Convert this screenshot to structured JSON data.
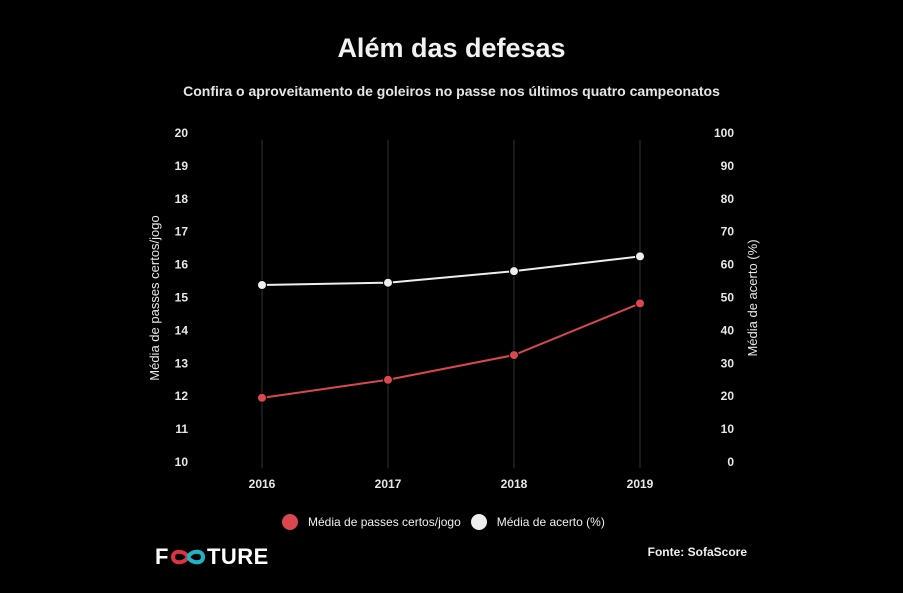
{
  "title": "Além das defesas",
  "subtitle": "Confira o aproveitamento de goleiros no passe nos últimos quatro campeonatos",
  "source": "Fonte: SofaScore",
  "logo": {
    "left": "F",
    "right": "TURE"
  },
  "colors": {
    "background": "#000000",
    "passes": "#d9484f",
    "accuracy": "#eeeeee",
    "grid": "#333333"
  },
  "chart_data": {
    "type": "line",
    "categories": [
      "2016",
      "2017",
      "2018",
      "2019"
    ],
    "series": [
      {
        "name": "Média de passes certos/jogo",
        "axis": "left",
        "values": [
          11.95,
          12.5,
          13.25,
          14.82
        ]
      },
      {
        "name": "Média de acerto (%)",
        "axis": "right",
        "values": [
          53.8,
          54.5,
          58.0,
          62.5
        ]
      }
    ],
    "y_left": {
      "label": "Média de passes certos/jogo",
      "lim": [
        10,
        20
      ],
      "ticks": [
        "10",
        "11",
        "12",
        "13",
        "14",
        "15",
        "16",
        "17",
        "18",
        "19",
        "20"
      ]
    },
    "y_right": {
      "label": "Média de acerto (%)",
      "lim": [
        0,
        100
      ],
      "ticks": [
        "0",
        "10",
        "20",
        "30",
        "40",
        "50",
        "60",
        "70",
        "80",
        "90",
        "100"
      ]
    },
    "grid": "vertical",
    "legend": "bottom"
  }
}
